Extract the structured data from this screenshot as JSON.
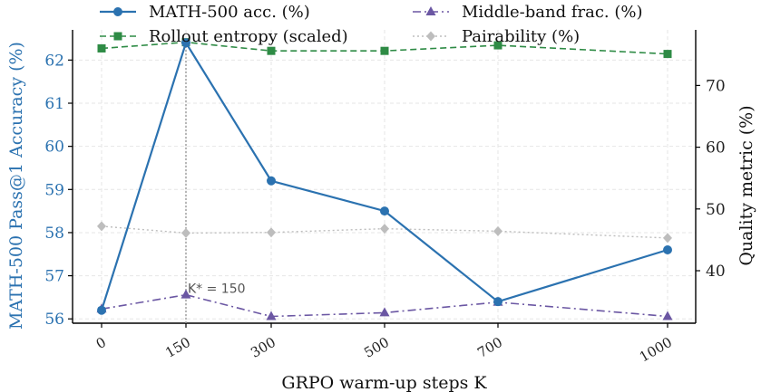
{
  "chart_data": {
    "type": "line",
    "x": [
      "0",
      "150",
      "300",
      "500",
      "700",
      "1000"
    ],
    "xlabel": "GRPO warm-up steps K",
    "ylabel_left": "MATH-500 Pass@1 Accuracy (%)",
    "ylabel_right": "Quality metric (%)",
    "ylim_left": [
      55.9,
      62.7
    ],
    "ylim_right": [
      31.5,
      79.0
    ],
    "yticks_left": [
      "56",
      "57",
      "58",
      "59",
      "60",
      "61",
      "62"
    ],
    "yticks_right": [
      "40",
      "50",
      "60",
      "70"
    ],
    "grid": true,
    "legend_position": "top",
    "annotation": {
      "text": "K* = 150",
      "x": "150"
    },
    "series": [
      {
        "name": "MATH-500 acc. (%)",
        "axis": "left",
        "color": "#2b72b0",
        "marker": "circle",
        "dash": "solid",
        "values": [
          56.2,
          62.4,
          59.2,
          58.5,
          56.4,
          57.6
        ]
      },
      {
        "name": "Rollout entropy (scaled)",
        "axis": "right",
        "color": "#2e8b45",
        "marker": "square",
        "dash": "dashed",
        "values": [
          76.0,
          77.0,
          75.6,
          75.6,
          76.5,
          75.1
        ]
      },
      {
        "name": "Middle-band frac. (%)",
        "axis": "right",
        "color": "#6b57a3",
        "marker": "triangle",
        "dash": "dashdot",
        "values": [
          33.8,
          36.1,
          32.6,
          33.2,
          34.9,
          32.6
        ]
      },
      {
        "name": "Pairability (%)",
        "axis": "right",
        "color": "#bdbdbd",
        "marker": "diamond",
        "dash": "dotted",
        "values": [
          47.2,
          46.1,
          46.2,
          46.8,
          46.4,
          45.3
        ]
      }
    ]
  }
}
